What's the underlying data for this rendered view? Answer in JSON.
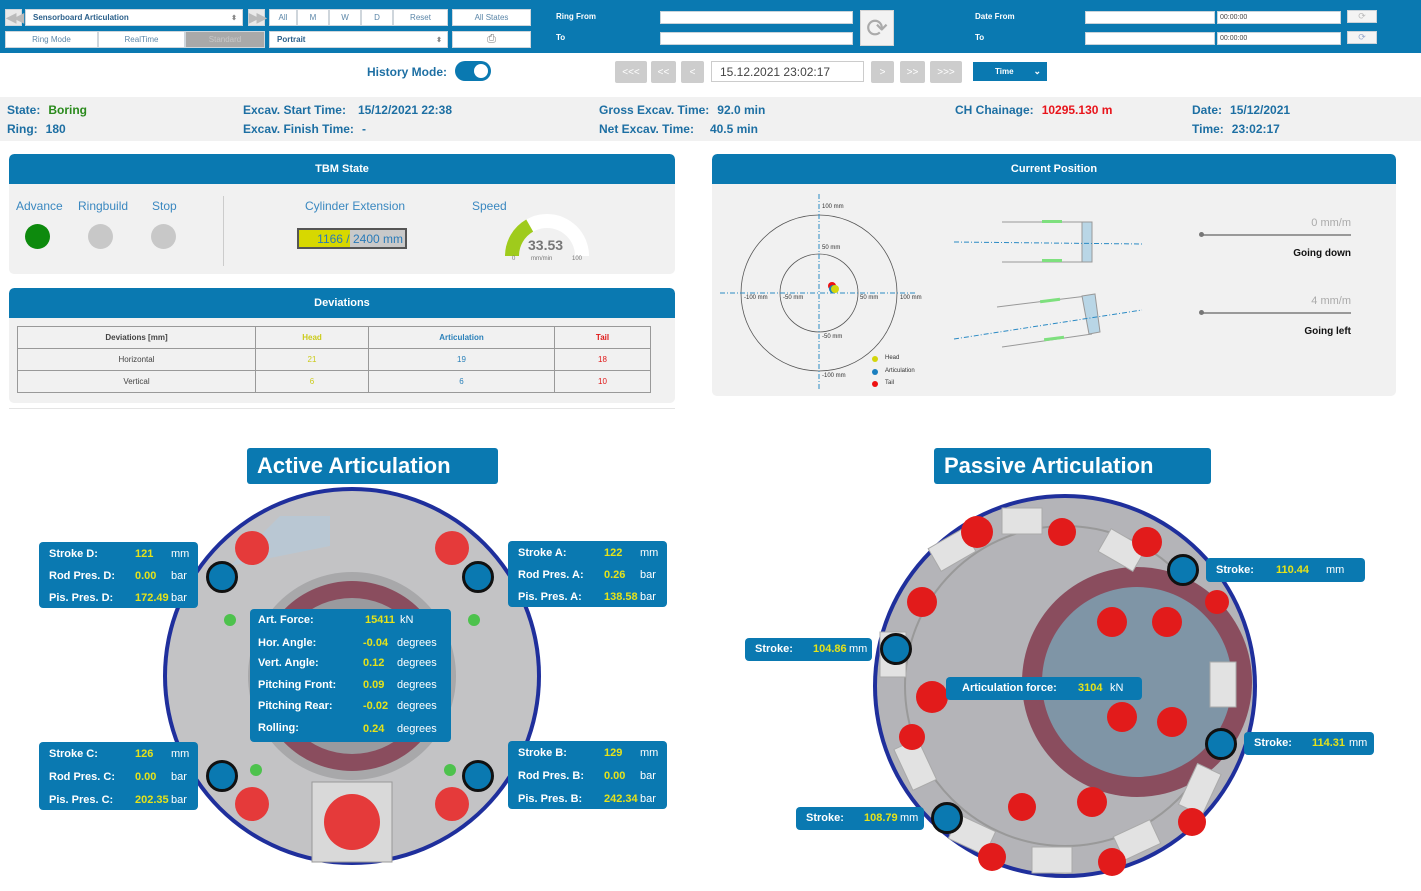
{
  "toolbar": {
    "view_select": "Sensorboard Articulation",
    "period_buttons": [
      "All",
      "M",
      "W",
      "D",
      "Reset"
    ],
    "states_button": "All States",
    "mode_buttons": [
      "Ring Mode",
      "RealTime",
      "Standard"
    ],
    "orientation_select": "Portrait",
    "print_icon": "print-icon",
    "ring_from_label": "Ring From",
    "ring_to_label": "To",
    "ring_from_value": "",
    "ring_to_value": "",
    "date_from_label": "Date From",
    "date_to_label": "To",
    "date_from_value": "",
    "date_to_value": "",
    "time_from_value": "00:00:00",
    "time_to_value": "00:00:00"
  },
  "history": {
    "label": "History Mode:",
    "enabled": true,
    "nav_back": [
      "<<<",
      "<<",
      "<"
    ],
    "nav_forward": [
      ">",
      ">>",
      ">>>"
    ],
    "datetime": "15.12.2021 23:02:17",
    "unit_select": "Time"
  },
  "info": {
    "state_label": "State:",
    "state": "Boring",
    "ring_label": "Ring:",
    "ring": "180",
    "start_label": "Excav. Start Time:",
    "start": "15/12/2021 22:38",
    "finish_label": "Excav. Finish Time:",
    "finish": "-",
    "gross_label": "Gross Excav. Time:",
    "gross": "92.0 min",
    "net_label": "Net Excav. Time:",
    "net": "40.5 min",
    "chainage_label": "CH Chainage:",
    "chainage": "10295.130 m",
    "date_label": "Date:",
    "date": "15/12/2021",
    "time_label": "Time:",
    "time": "23:02:17"
  },
  "tbm_state": {
    "title": "TBM State",
    "states": [
      {
        "label": "Advance",
        "active": true,
        "color": "#0d8a0d"
      },
      {
        "label": "Ringbuild",
        "active": false,
        "color": "#c8c8c8"
      },
      {
        "label": "Stop",
        "active": false,
        "color": "#c8c8c8"
      }
    ],
    "cylinder_label": "Cylinder Extension",
    "cylinder_value": 1166,
    "cylinder_max": 2400,
    "cylinder_text": "1166 / 2400 mm",
    "speed_label": "Speed",
    "speed_value": "33.53",
    "speed_unit": "mm/min",
    "speed_min": "0",
    "speed_max": "100"
  },
  "deviations": {
    "title": "Deviations",
    "headers": [
      "Deviations [mm]",
      "Head",
      "Articulation",
      "Tail"
    ],
    "rows": [
      {
        "label": "Horizontal",
        "head": "21",
        "articulation": "19",
        "tail": "18"
      },
      {
        "label": "Vertical",
        "head": "6",
        "articulation": "6",
        "tail": "10"
      }
    ]
  },
  "current_position": {
    "title": "Current Position",
    "axis_labels": {
      "top100": "100 mm",
      "top50": "50 mm",
      "bottom50": "-50 mm",
      "bottom100": "-100 mm",
      "left100": "-100 mm",
      "left50": "-50 mm",
      "right50": "50 mm",
      "right100": "100 mm"
    },
    "legend": [
      {
        "label": "Head",
        "color": "#d4d60c"
      },
      {
        "label": "Articulation",
        "color": "#1a7fbf"
      },
      {
        "label": "Tail",
        "color": "#ee1111"
      }
    ],
    "vertical_value": "0 mm/m",
    "vertical_direction": "Going down",
    "horizontal_value": "4 mm/m",
    "horizontal_direction": "Going left"
  },
  "active_articulation": {
    "title": "Active Articulation",
    "cylinders": [
      {
        "id": "D",
        "rows": [
          [
            "Stroke D:",
            "121",
            "mm"
          ],
          [
            "Rod Pres. D:",
            "0.00",
            "bar"
          ],
          [
            "Pis. Pres. D:",
            "172.49",
            "bar"
          ]
        ]
      },
      {
        "id": "A",
        "rows": [
          [
            "Stroke A:",
            "122",
            "mm"
          ],
          [
            "Rod Pres. A:",
            "0.26",
            "bar"
          ],
          [
            "Pis. Pres. A:",
            "138.58",
            "bar"
          ]
        ]
      },
      {
        "id": "C",
        "rows": [
          [
            "Stroke C:",
            "126",
            "mm"
          ],
          [
            "Rod Pres. C:",
            "0.00",
            "bar"
          ],
          [
            "Pis. Pres. C:",
            "202.35",
            "bar"
          ]
        ]
      },
      {
        "id": "B",
        "rows": [
          [
            "Stroke B:",
            "129",
            "mm"
          ],
          [
            "Rod Pres. B:",
            "0.00",
            "bar"
          ],
          [
            "Pis. Pres. B:",
            "242.34",
            "bar"
          ]
        ]
      }
    ],
    "summary": [
      [
        "Art. Force:",
        "15411",
        "kN"
      ],
      [
        "Hor. Angle:",
        "-0.04",
        "degrees"
      ],
      [
        "Vert. Angle:",
        "0.12",
        "degrees"
      ],
      [
        "Pitching Front:",
        "0.09",
        "degrees"
      ],
      [
        "Pitching Rear:",
        "-0.02",
        "degrees"
      ],
      [
        "Rolling:",
        "0.24",
        "degrees"
      ]
    ]
  },
  "passive_articulation": {
    "title": "Passive Articulation",
    "strokes": [
      {
        "label": "Stroke:",
        "value": "110.44",
        "unit": "mm"
      },
      {
        "label": "Stroke:",
        "value": "104.86",
        "unit": "mm"
      },
      {
        "label": "Stroke:",
        "value": "114.31",
        "unit": "mm"
      },
      {
        "label": "Stroke:",
        "value": "108.79",
        "unit": "mm"
      }
    ],
    "force_label": "Articulation force:",
    "force_value": "3104",
    "force_unit": "kN"
  }
}
